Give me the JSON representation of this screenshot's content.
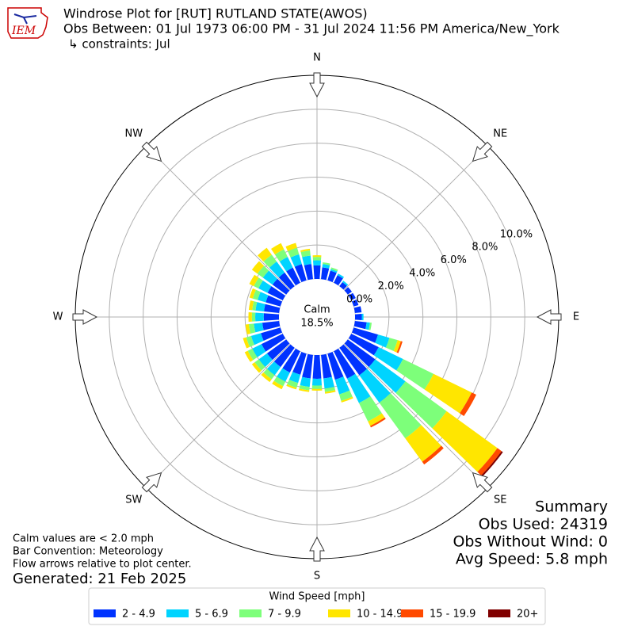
{
  "chart_data": {
    "type": "windrose",
    "logo_text": "IEM",
    "title": "Windrose Plot for [RUT] RUTLAND STATE(AWOS)",
    "subtitle": "Obs Between: 01 Jul 1973 06:00 PM - 31 Jul 2024 11:56 PM America/New_York",
    "constraints": "↳ constraints: Jul",
    "directions": [
      "N",
      "NE",
      "E",
      "SE",
      "S",
      "SW",
      "W",
      "NW"
    ],
    "x": [
      0,
      10,
      20,
      30,
      40,
      50,
      60,
      70,
      80,
      90,
      100,
      110,
      120,
      130,
      140,
      150,
      160,
      170,
      180,
      190,
      200,
      210,
      220,
      230,
      240,
      250,
      260,
      270,
      280,
      290,
      300,
      310,
      320,
      330,
      340,
      350
    ],
    "ylim": [
      0,
      12
    ],
    "yticks": [
      {
        "value": 0,
        "label": "0.0%"
      },
      {
        "value": 2,
        "label": "2.0%"
      },
      {
        "value": 4,
        "label": "4.0%"
      },
      {
        "value": 6,
        "label": "6.0%"
      },
      {
        "value": 8,
        "label": "8.0%"
      },
      {
        "value": 10,
        "label": "10.0%"
      }
    ],
    "grid": true,
    "calm_label": "Calm",
    "calm": {
      "value": 18.5,
      "label": "18.5%"
    },
    "legend_title": "Wind Speed [mph]",
    "series": [
      {
        "name": "2 - 4.9",
        "color": "#0033ff",
        "values": [
          0.8,
          0.7,
          0.6,
          0.5,
          0.3,
          0.3,
          0.3,
          0.3,
          0.4,
          0.4,
          0.7,
          1.5,
          1.8,
          2.0,
          2.0,
          1.8,
          1.6,
          1.4,
          1.4,
          1.4,
          1.3,
          1.4,
          1.4,
          1.4,
          1.4,
          1.2,
          1.0,
          0.9,
          0.9,
          0.9,
          1.0,
          1.0,
          1.0,
          1.0,
          1.0,
          0.9
        ]
      },
      {
        "name": "5 - 6.9",
        "color": "#00d4ff",
        "values": [
          0.3,
          0.2,
          0.1,
          0.1,
          0.1,
          0,
          0,
          0,
          0,
          0.1,
          0.2,
          0.7,
          1.6,
          2.2,
          2.0,
          1.6,
          0.9,
          0.6,
          0.4,
          0.5,
          0.5,
          0.6,
          0.6,
          0.6,
          0.6,
          0.6,
          0.5,
          0.5,
          0.5,
          0.5,
          0.6,
          0.7,
          0.8,
          0.7,
          0.6,
          0.5
        ]
      },
      {
        "name": "7 - 9.9",
        "color": "#7dff7a",
        "values": [
          0.2,
          0.1,
          0.1,
          0,
          0,
          0,
          0,
          0,
          0,
          0,
          0.1,
          0.5,
          2.0,
          3.0,
          2.6,
          1.2,
          0.4,
          0.2,
          0.2,
          0.2,
          0.3,
          0.3,
          0.3,
          0.3,
          0.3,
          0.3,
          0.3,
          0.2,
          0.2,
          0.3,
          0.3,
          0.4,
          0.5,
          0.5,
          0.4,
          0.3
        ]
      },
      {
        "name": "10 - 14.9",
        "color": "#ffe600",
        "values": [
          0.1,
          0,
          0,
          0,
          0,
          0,
          0,
          0,
          0,
          0,
          0,
          0.2,
          2.5,
          3.7,
          1.7,
          0.3,
          0.1,
          0.1,
          0.1,
          0.1,
          0.1,
          0.2,
          0.2,
          0.2,
          0.2,
          0.2,
          0.2,
          0.2,
          0.2,
          0.2,
          0.3,
          0.4,
          0.5,
          0.4,
          0.3,
          0.1
        ]
      },
      {
        "name": "15 - 19.9",
        "color": "#ff4a00",
        "values": [
          0,
          0,
          0,
          0,
          0,
          0,
          0,
          0,
          0,
          0,
          0,
          0.1,
          0.3,
          0.3,
          0.2,
          0.1,
          0,
          0,
          0,
          0,
          0,
          0,
          0,
          0,
          0,
          0,
          0,
          0,
          0,
          0,
          0,
          0,
          0,
          0,
          0,
          0
        ]
      },
      {
        "name": "20+",
        "color": "#800000",
        "values": [
          0,
          0,
          0,
          0,
          0,
          0,
          0,
          0,
          0,
          0,
          0,
          0,
          0,
          0.1,
          0,
          0,
          0,
          0,
          0,
          0,
          0,
          0,
          0,
          0,
          0,
          0,
          0,
          0,
          0,
          0,
          0,
          0,
          0,
          0,
          0,
          0
        ]
      }
    ],
    "notes": [
      "Calm values are < 2.0 mph",
      "Bar Convention: Meteorology",
      "Flow arrows relative to plot center."
    ],
    "generated": "Generated: 21 Feb 2025",
    "summary": [
      "Summary",
      "Obs Used: 24319",
      "Obs Without Wind: 0",
      "Avg Speed: 5.8 mph"
    ]
  }
}
